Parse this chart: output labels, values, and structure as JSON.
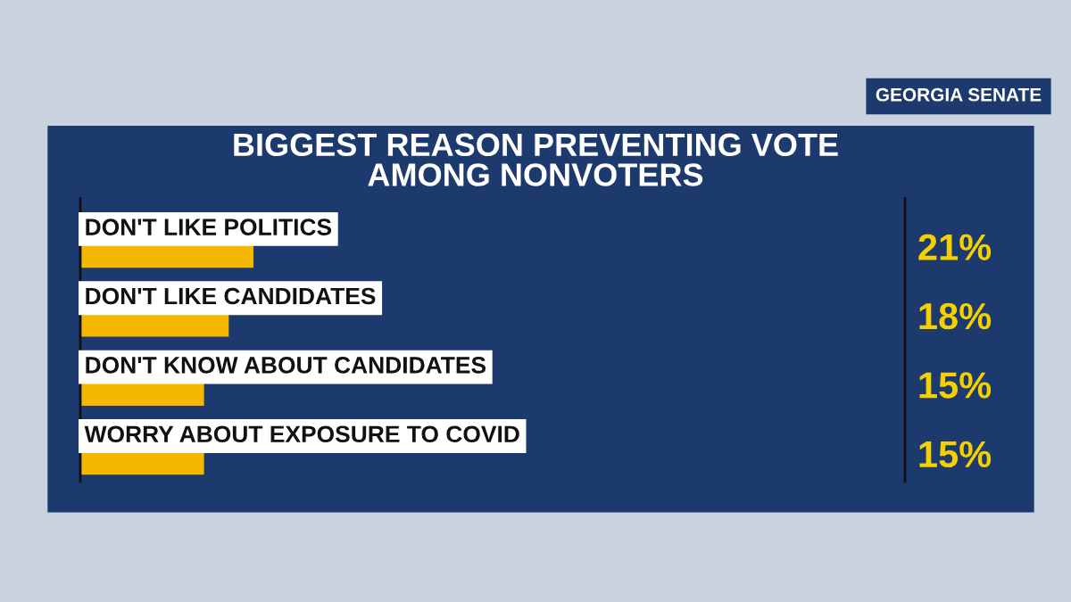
{
  "chart_data": {
    "type": "bar",
    "orientation": "horizontal",
    "title": "BIGGEST REASON PREVENTING VOTE\nAMONG NONVOTERS",
    "subtitle": "GEORGIA SENATE",
    "categories": [
      "DON'T LIKE POLITICS",
      "DON'T LIKE CANDIDATES",
      "DON'T KNOW ABOUT CANDIDATES",
      "WORRY ABOUT EXPOSURE TO COVID"
    ],
    "values": [
      21,
      18,
      15,
      15
    ],
    "color": "#f5b800",
    "value_labels": [
      "21%",
      "18%",
      "15%",
      "15%"
    ],
    "xlim": [
      0,
      100
    ],
    "legend": false
  }
}
